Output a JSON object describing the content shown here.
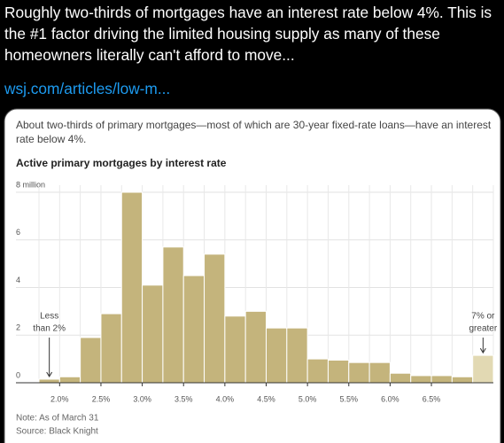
{
  "tweet_text": "Roughly two-thirds of mortgages have an interest rate below 4%. This is the #1 factor driving the limited housing supply as many of these homeowners literally can't afford to move...",
  "link": "wsj.com/articles/low-m...",
  "chart_data": {
    "type": "histogram",
    "subtitle": "About two-thirds of primary mortgages—most of which are 30-year fixed-rate loans—have an interest rate below 4%.",
    "title": "Active primary mortgages by interest rate",
    "bins": [
      1.75,
      2.0,
      2.25,
      2.5,
      2.75,
      3.0,
      3.25,
      3.5,
      3.75,
      4.0,
      4.25,
      4.5,
      4.75,
      5.0,
      5.25,
      5.5,
      5.75,
      6.0,
      6.25,
      6.5,
      6.75,
      7.0,
      7.25
    ],
    "values": [
      0.15,
      0.25,
      1.9,
      2.9,
      8.0,
      4.1,
      5.7,
      4.5,
      5.4,
      2.8,
      3.0,
      2.3,
      2.3,
      1.0,
      0.95,
      0.85,
      0.85,
      0.4,
      0.3,
      0.3,
      0.25,
      1.15
    ],
    "colors": [
      "#c4b47c",
      "#c4b47c",
      "#c4b47c",
      "#c4b47c",
      "#c4b47c",
      "#c4b47c",
      "#c4b47c",
      "#c4b47c",
      "#c4b47c",
      "#c4b47c",
      "#c4b47c",
      "#c4b47c",
      "#c4b47c",
      "#c4b47c",
      "#c4b47c",
      "#c4b47c",
      "#c4b47c",
      "#c4b47c",
      "#c4b47c",
      "#c4b47c",
      "#c4b47c",
      "#e2d9b3"
    ],
    "xlim": [
      1.75,
      7.25
    ],
    "xticks": [
      {
        "value": 2.0,
        "label": "2.0%"
      },
      {
        "value": 2.5,
        "label": "2.5%"
      },
      {
        "value": 3.0,
        "label": "3.0%"
      },
      {
        "value": 3.5,
        "label": "3.5%"
      },
      {
        "value": 4.0,
        "label": "4.0%"
      },
      {
        "value": 4.5,
        "label": "4.5%"
      },
      {
        "value": 5.0,
        "label": "5.0%"
      },
      {
        "value": 5.5,
        "label": "5.5%"
      },
      {
        "value": 6.0,
        "label": "6.0%"
      },
      {
        "value": 6.5,
        "label": "6.5%"
      }
    ],
    "ylim": [
      0,
      8
    ],
    "yticks": [
      0,
      2,
      4,
      6,
      {
        "value": 8,
        "label": "8 million"
      }
    ],
    "grid": true,
    "annotations": [
      {
        "lines": [
          "Less",
          "than 2%"
        ]
      },
      {
        "lines": [
          "7% or",
          "greater"
        ]
      }
    ],
    "note": "Note: As of March 31",
    "source": "Source: Black Knight"
  }
}
